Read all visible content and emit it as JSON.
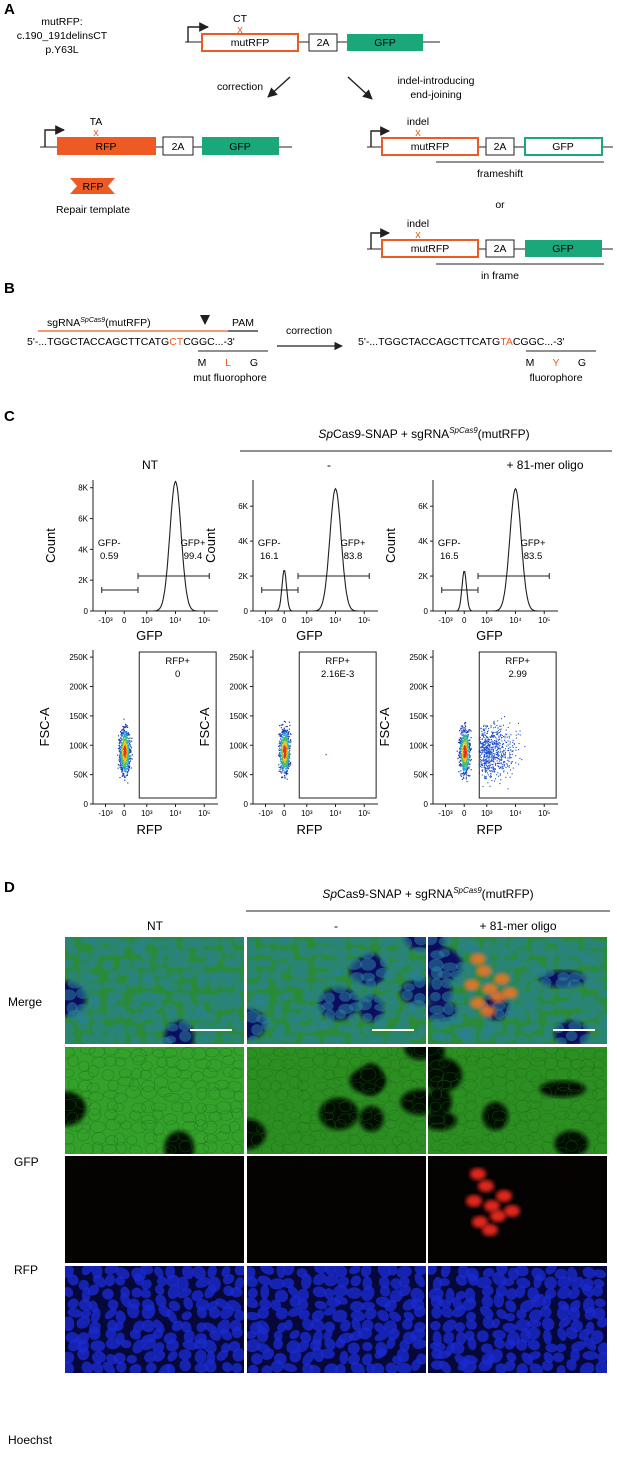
{
  "colors": {
    "rfp": "#ee5a24",
    "gfp": "#1aa87a",
    "dark": "#231f20",
    "hoechst": "#1220b8"
  },
  "panelA": {
    "letter": "A",
    "mut_name": "mutRFP:",
    "mut_hgvs": "c.190_191delinsCT",
    "mut_protein": "p.Y63L",
    "ct_label": "CT",
    "cross": "x",
    "construct_mut": "mutRFP",
    "two_a": "2A",
    "gfp": "GFP",
    "rfp": "RFP",
    "ta_label": "TA",
    "arrow_correction": "correction",
    "arrow_indel_1": "indel-introducing",
    "arrow_indel_2": "end-joining",
    "indel": "indel",
    "frameshift": "frameshift",
    "or": "or",
    "in_frame": "in frame",
    "repair_template": "Repair template"
  },
  "panelB": {
    "letter": "B",
    "sgrna_pre": "sgRNA",
    "sgrna_sup": "SpCas9",
    "sgrna_post": "(mutRFP)",
    "pam": "PAM",
    "seq_left_a": "5'-...TGGCTACCAGCTTCATG",
    "seq_left_mut": "CT",
    "seq_left_b": "CGGC...-3'",
    "codons_mut": [
      "M",
      "L",
      "G"
    ],
    "mut_caption": "mut fluorophore",
    "correction": "correction",
    "seq_right_a": "5'-...TGGCTACCAGCTTCATG",
    "seq_right_mut": "TA",
    "seq_right_b": "CGGC...-3'",
    "codons_wt": [
      "M",
      "Y",
      "G"
    ],
    "wt_caption": "fluorophore"
  },
  "panelC": {
    "letter": "C",
    "treatment_italic": "Sp",
    "treatment_a": "Cas9-SNAP + sgRNA",
    "treatment_sup": "SpCas9",
    "treatment_b": "(mutRFP)",
    "conditions": [
      "NT",
      "-",
      "+ 81-mer oligo"
    ],
    "histogram_ylabel": "Count",
    "histogram_xlabel": "GFP",
    "x_ticks": [
      "-10³",
      "0",
      "10³",
      "10⁴",
      "10⁵"
    ],
    "histogram_y_ticks": [
      [
        "0",
        "2K",
        "4K",
        "6K",
        "8K"
      ],
      [
        "0",
        "2K",
        "4K",
        "6K"
      ],
      [
        "0",
        "2K",
        "4K",
        "6K"
      ]
    ],
    "scatter_ylabel": "FSC-A",
    "scatter_xlabel": "RFP",
    "scatter_y_ticks": [
      "0",
      "50K",
      "100K",
      "150K",
      "200K",
      "250K"
    ],
    "gates": [
      {
        "gfp_neg_label": "GFP-",
        "gfp_neg": "0.59",
        "gfp_pos_label": "GFP+",
        "gfp_pos": "99.4",
        "rfp_pos_label": "RFP+",
        "rfp_pos": "0"
      },
      {
        "gfp_neg_label": "GFP-",
        "gfp_neg": "16.1",
        "gfp_pos_label": "GFP+",
        "gfp_pos": "83.8",
        "rfp_pos_label": "RFP+",
        "rfp_pos": "2.16E-3"
      },
      {
        "gfp_neg_label": "GFP-",
        "gfp_neg": "16.5",
        "gfp_pos_label": "GFP+",
        "gfp_pos": "83.5",
        "rfp_pos_label": "RFP+",
        "rfp_pos": "2.99"
      }
    ]
  },
  "panelD": {
    "letter": "D",
    "treatment_italic": "Sp",
    "treatment_a": "Cas9-SNAP + sgRNA",
    "treatment_sup": "SpCas9",
    "treatment_b": "(mutRFP)",
    "conditions": [
      "NT",
      "-",
      "+ 81-mer oligo"
    ],
    "rows": [
      "Merge",
      "GFP",
      "RFP",
      "Hoechst"
    ]
  },
  "chart_data": [
    {
      "type": "area",
      "title": "NT",
      "xlabel": "GFP",
      "ylabel": "Count",
      "ylim": [
        0,
        8500
      ],
      "y_ticks": [
        0,
        2000,
        4000,
        6000,
        8000
      ],
      "series": [
        {
          "name": "GFP-",
          "values": [
            0.59
          ]
        },
        {
          "name": "GFP+",
          "values": [
            99.4
          ]
        }
      ],
      "peaks": [
        {
          "x": 10000,
          "y": 8400
        }
      ]
    },
    {
      "type": "area",
      "title": "-",
      "xlabel": "GFP",
      "ylabel": "Count",
      "ylim": [
        0,
        7500
      ],
      "y_ticks": [
        0,
        2000,
        4000,
        6000
      ],
      "series": [
        {
          "name": "GFP-",
          "values": [
            16.1
          ]
        },
        {
          "name": "GFP+",
          "values": [
            83.8
          ]
        }
      ],
      "peaks": [
        {
          "x": 0,
          "y": 2350
        },
        {
          "x": 10000,
          "y": 7000
        }
      ]
    },
    {
      "type": "area",
      "title": "+ 81-mer oligo",
      "xlabel": "GFP",
      "ylabel": "Count",
      "ylim": [
        0,
        7500
      ],
      "y_ticks": [
        0,
        2000,
        4000,
        6000
      ],
      "series": [
        {
          "name": "GFP-",
          "values": [
            16.5
          ]
        },
        {
          "name": "GFP+",
          "values": [
            83.5
          ]
        }
      ],
      "peaks": [
        {
          "x": 0,
          "y": 2300
        },
        {
          "x": 10000,
          "y": 7000
        }
      ]
    },
    {
      "type": "scatter",
      "title": "NT",
      "xlabel": "RFP",
      "ylabel": "FSC-A",
      "ylim": [
        0,
        262144
      ],
      "series": [
        {
          "name": "RFP+",
          "values": [
            0
          ]
        }
      ]
    },
    {
      "type": "scatter",
      "title": "-",
      "xlabel": "RFP",
      "ylabel": "FSC-A",
      "ylim": [
        0,
        262144
      ],
      "series": [
        {
          "name": "RFP+",
          "values": [
            0.00216
          ]
        }
      ]
    },
    {
      "type": "scatter",
      "title": "+ 81-mer oligo",
      "xlabel": "RFP",
      "ylabel": "FSC-A",
      "ylim": [
        0,
        262144
      ],
      "series": [
        {
          "name": "RFP+",
          "values": [
            2.99
          ]
        }
      ]
    }
  ]
}
